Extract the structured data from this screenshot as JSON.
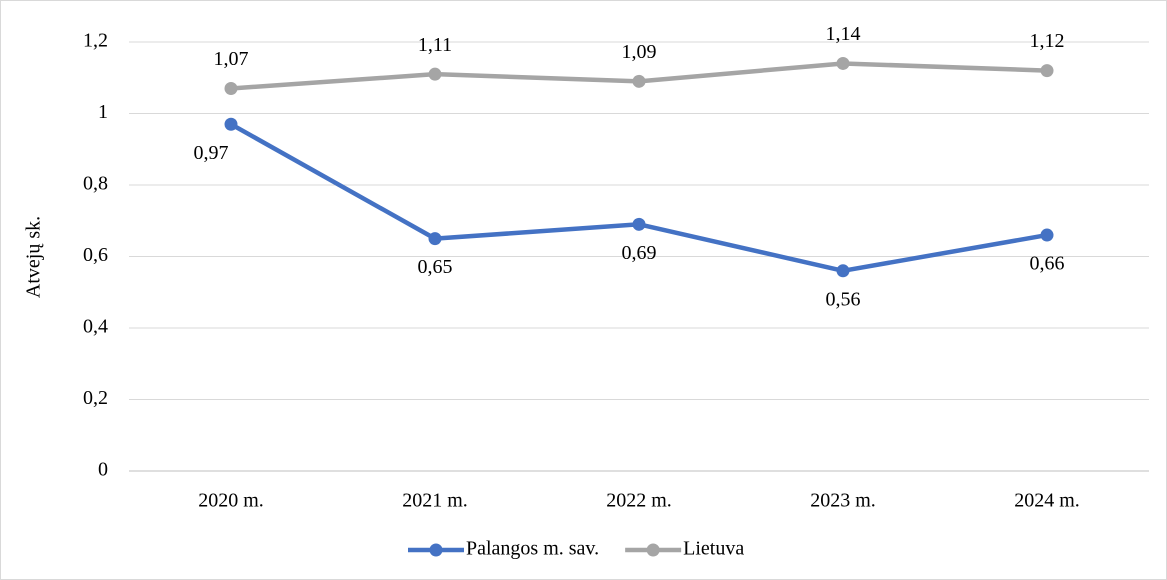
{
  "chart_data": {
    "type": "line",
    "y_label": "Atvejų sk.",
    "categories": [
      "2020 m.",
      "2021 m.",
      "2022 m.",
      "2023 m.",
      "2024 m."
    ],
    "series": [
      {
        "name": "Palangos m. sav.",
        "color": "#4472c4",
        "values": [
          0.97,
          0.65,
          0.69,
          0.56,
          0.66
        ],
        "value_labels": [
          "0,97",
          "0,65",
          "0,69",
          "0,56",
          "0,66"
        ]
      },
      {
        "name": "Lietuva",
        "color": "#a5a5a5",
        "values": [
          1.07,
          1.11,
          1.09,
          1.14,
          1.12
        ],
        "value_labels": [
          "1,07",
          "1,11",
          "1,09",
          "1,14",
          "1,12"
        ]
      }
    ],
    "ylim": [
      0,
      1.2
    ],
    "yticks": [
      0,
      {
        "value": 0.2,
        "label": "0,2"
      },
      {
        "value": 0.4,
        "label": "0,4"
      },
      {
        "value": 0.6,
        "label": "0,6"
      },
      {
        "value": 0.8,
        "label": "0,8"
      },
      1,
      {
        "value": 1.2,
        "label": "1,2"
      }
    ],
    "grid": true,
    "legend": "bottom"
  }
}
